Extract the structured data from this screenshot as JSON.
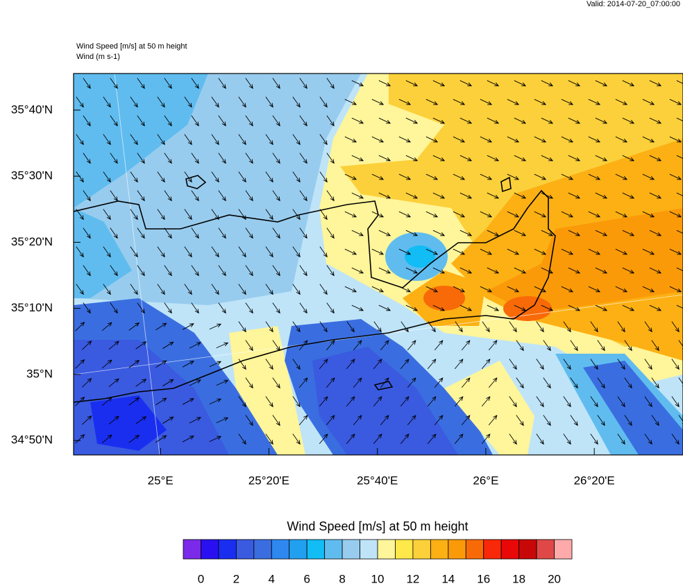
{
  "valid": "Valid: 2014-07-20_07:00:00",
  "title": "Wind Speed [m/s] at 50 m height",
  "subtitle": "Wind   (m s-1)",
  "map": {
    "xlim": [
      24.733,
      26.606
    ],
    "ylim": [
      34.797,
      35.759
    ],
    "xticks": [
      {
        "value": 25,
        "label": "25°E"
      },
      {
        "value": 25.3333,
        "label": "25°20'E"
      },
      {
        "value": 25.6667,
        "label": "25°40'E"
      },
      {
        "value": 26,
        "label": "26°E"
      },
      {
        "value": 26.3333,
        "label": "26°20'E"
      }
    ],
    "yticks": [
      {
        "value": 35.6667,
        "label": "35°40'N"
      },
      {
        "value": 35.5,
        "label": "35°30'N"
      },
      {
        "value": 35.3333,
        "label": "35°20'N"
      },
      {
        "value": 35.1667,
        "label": "35°10'N"
      },
      {
        "value": 35,
        "label": "35°N"
      },
      {
        "value": 34.8333,
        "label": "34°50'N"
      }
    ]
  },
  "colorbar": {
    "title": "Wind Speed [m/s] at 50 m height",
    "colors": [
      "#7a2ae8",
      "#2a10f0",
      "#1a2ef0",
      "#3a5ae0",
      "#3a6ee0",
      "#2e88f0",
      "#22a0f0",
      "#12bcf5",
      "#60bcef",
      "#98ccee",
      "#bfe4f8",
      "#fff59a",
      "#ffe84a",
      "#fcd03a",
      "#fcb014",
      "#fb9a08",
      "#f86a08",
      "#f82808",
      "#e80808",
      "#c80808",
      "#e04848",
      "#ffaaaa"
    ],
    "ticks": [
      0,
      2,
      4,
      6,
      8,
      10,
      12,
      14,
      16,
      18,
      20
    ]
  }
}
